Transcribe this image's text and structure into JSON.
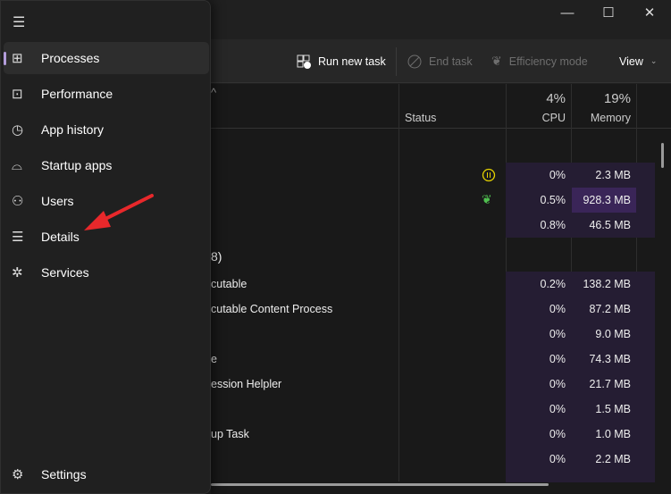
{
  "window": {
    "minimize": "—",
    "maximize": "☐",
    "close": "✕"
  },
  "toolbar": {
    "run_new_task": "Run new task",
    "end_task": "End task",
    "efficiency_mode": "Efficiency mode",
    "view": "View"
  },
  "table": {
    "headers": {
      "status": "Status",
      "cpu_pct": "4%",
      "cpu": "CPU",
      "mem_pct": "19%",
      "memory": "Memory"
    },
    "group_header": "8)",
    "rows1": [
      {
        "status": "paused",
        "cpu": "0%",
        "mem": "2.3 MB"
      },
      {
        "status": "efficiency",
        "cpu": "0.5%",
        "mem": "928.3 MB"
      },
      {
        "status": "",
        "cpu": "0.8%",
        "mem": "46.5 MB"
      }
    ],
    "rows2": [
      {
        "name": "cutable",
        "cpu": "0.2%",
        "mem": "138.2 MB"
      },
      {
        "name": "cutable Content Process",
        "cpu": "0%",
        "mem": "87.2 MB"
      },
      {
        "name": "",
        "cpu": "0%",
        "mem": "9.0 MB"
      },
      {
        "name": "e",
        "cpu": "0%",
        "mem": "74.3 MB"
      },
      {
        "name": "ession Helpler",
        "cpu": "0%",
        "mem": "21.7 MB"
      },
      {
        "name": "",
        "cpu": "0%",
        "mem": "1.5 MB"
      },
      {
        "name": "up Task",
        "cpu": "0%",
        "mem": "1.0 MB"
      },
      {
        "name": "",
        "cpu": "0%",
        "mem": "2.2 MB"
      }
    ]
  },
  "sidebar": {
    "items": [
      {
        "label": "Processes",
        "icon": "processes-icon",
        "active": true
      },
      {
        "label": "Performance",
        "icon": "performance-icon"
      },
      {
        "label": "App history",
        "icon": "history-icon"
      },
      {
        "label": "Startup apps",
        "icon": "startup-icon"
      },
      {
        "label": "Users",
        "icon": "users-icon"
      },
      {
        "label": "Details",
        "icon": "details-icon"
      },
      {
        "label": "Services",
        "icon": "services-icon"
      }
    ],
    "settings": "Settings"
  },
  "colors": {
    "accent": "#b39ddb",
    "arrow": "#e8282b",
    "heat": "#251d33",
    "heat_strong": "#3a2558"
  }
}
